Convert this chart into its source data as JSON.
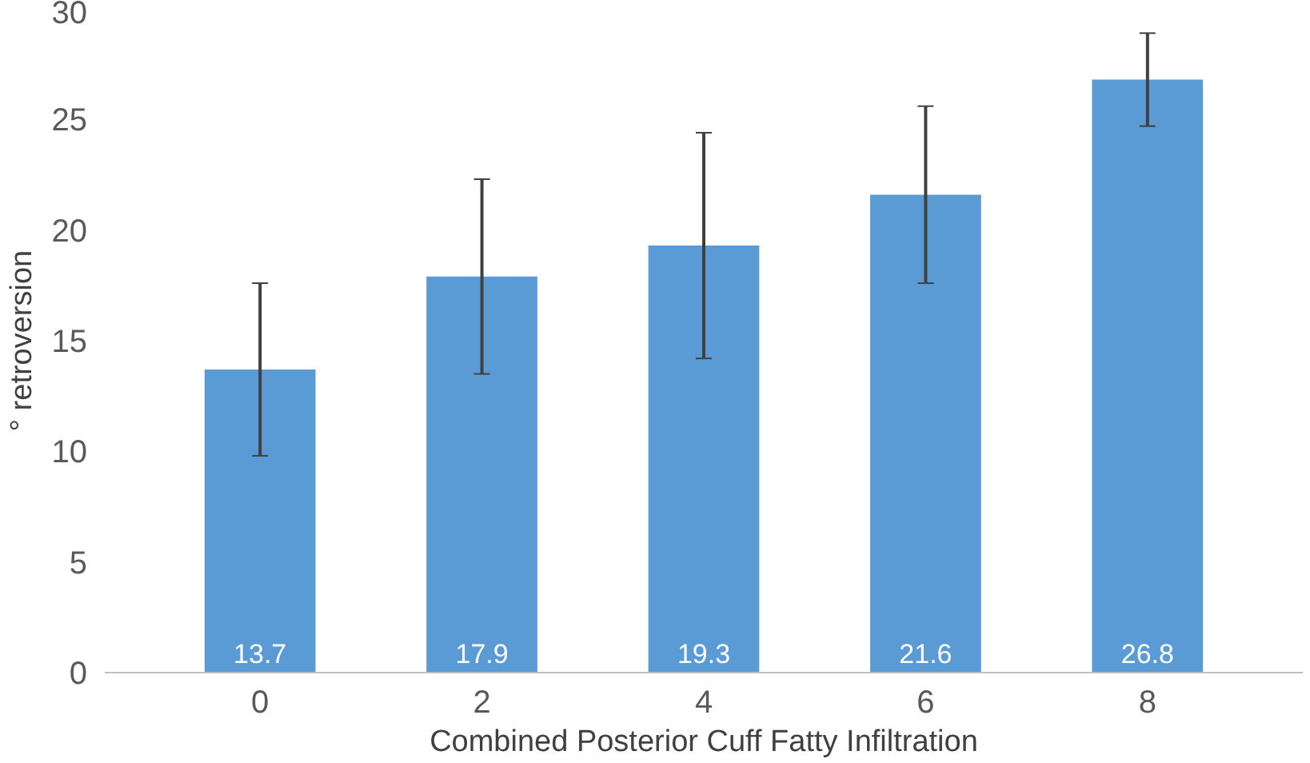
{
  "chart_data": {
    "type": "bar",
    "xlabel": "Combined Posterior Cuff Fatty Infiltration",
    "ylabel": "° retroversion",
    "categories": [
      "0",
      "2",
      "4",
      "6",
      "8"
    ],
    "values": [
      13.7,
      17.9,
      19.3,
      21.6,
      26.8
    ],
    "errors": [
      3.9,
      4.4,
      5.1,
      4.0,
      2.1
    ],
    "color": "#5b9bd5",
    "data_labels": true,
    "grid": false,
    "ylim": [
      0,
      30
    ],
    "yticks": [
      0,
      5,
      10,
      15,
      20,
      25,
      30
    ]
  }
}
